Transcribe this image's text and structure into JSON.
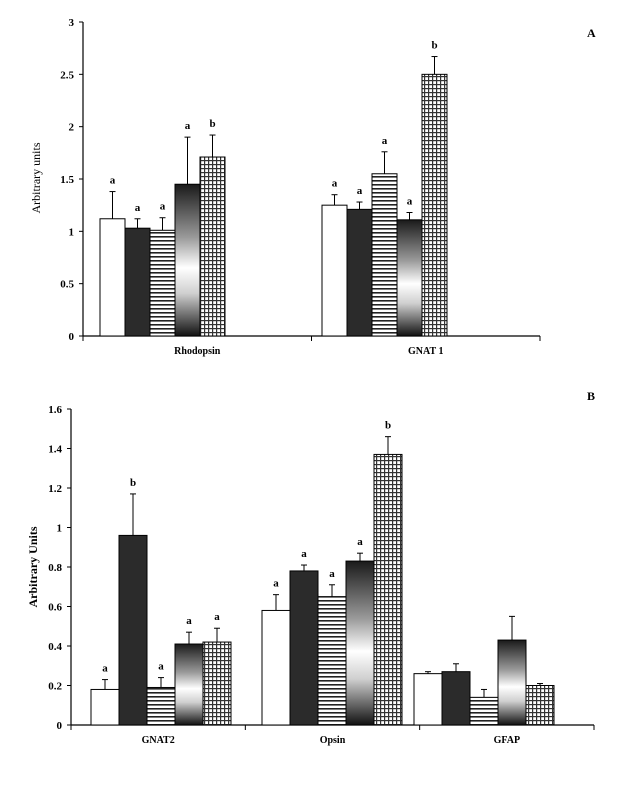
{
  "chart_data": [
    {
      "panel": "A",
      "type": "bar",
      "ylabel": "Arbitrary units",
      "ylim": [
        0,
        3
      ],
      "yticks": [
        "0",
        "0.5",
        "1",
        "1.5",
        "2",
        "2.5",
        "3"
      ],
      "categories": [
        "Rhodopsin",
        "GNAT1"
      ],
      "category_labels": [
        "Rhodopsin",
        "GNAT 1"
      ],
      "series": [
        {
          "pattern": "white",
          "values": [
            1.12,
            1.25
          ],
          "errors": [
            0.26,
            0.1
          ],
          "letters": [
            "a",
            "a"
          ]
        },
        {
          "pattern": "dark",
          "values": [
            1.03,
            1.21
          ],
          "errors": [
            0.09,
            0.07
          ],
          "letters": [
            "a",
            "a"
          ]
        },
        {
          "pattern": "hstripes",
          "values": [
            1.01,
            1.55
          ],
          "errors": [
            0.12,
            0.21
          ],
          "letters": [
            "a",
            "a"
          ]
        },
        {
          "pattern": "gradient",
          "values": [
            1.45,
            1.11
          ],
          "errors": [
            0.45,
            0.07
          ],
          "letters": [
            "a",
            "a"
          ]
        },
        {
          "pattern": "crosshatch",
          "values": [
            1.71,
            2.5
          ],
          "errors": [
            0.21,
            0.17
          ],
          "letters": [
            "b",
            "b"
          ]
        }
      ]
    },
    {
      "panel": "B",
      "type": "bar",
      "ylabel": "Arbitrary Units",
      "ylim": [
        0,
        1.6
      ],
      "yticks": [
        "0",
        "0.2",
        "0.4",
        "0.6",
        "0.8",
        "1",
        "1.2",
        "1.4",
        "1.6"
      ],
      "categories": [
        "GNAT2",
        "Opsin",
        "GFAP"
      ],
      "category_labels": [
        "GNAT2",
        "Opsin",
        "GFAP"
      ],
      "series": [
        {
          "pattern": "white",
          "values": [
            0.18,
            0.58,
            0.26
          ],
          "errors": [
            0.05,
            0.08,
            0.01
          ],
          "letters": [
            "a",
            "a",
            ""
          ]
        },
        {
          "pattern": "dark",
          "values": [
            0.96,
            0.78,
            0.27
          ],
          "errors": [
            0.21,
            0.03,
            0.04
          ],
          "letters": [
            "b",
            "a",
            ""
          ]
        },
        {
          "pattern": "hstripes",
          "values": [
            0.19,
            0.65,
            0.14
          ],
          "errors": [
            0.05,
            0.06,
            0.04
          ],
          "letters": [
            "a",
            "a",
            ""
          ]
        },
        {
          "pattern": "gradient",
          "values": [
            0.41,
            0.83,
            0.43
          ],
          "errors": [
            0.06,
            0.04,
            0.12
          ],
          "letters": [
            "a",
            "a",
            ""
          ]
        },
        {
          "pattern": "crosshatch",
          "values": [
            0.42,
            1.37,
            0.2
          ],
          "errors": [
            0.07,
            0.09,
            0.01
          ],
          "letters": [
            "a",
            "b",
            ""
          ]
        }
      ]
    }
  ]
}
